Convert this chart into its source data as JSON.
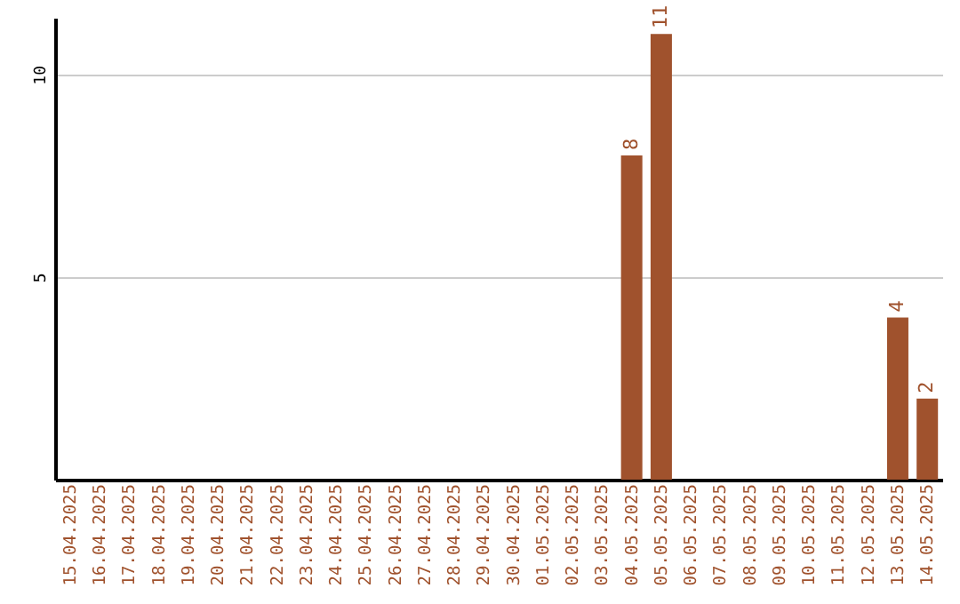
{
  "chart_data": {
    "type": "bar",
    "categories": [
      "15.04.2025",
      "16.04.2025",
      "17.04.2025",
      "18.04.2025",
      "19.04.2025",
      "20.04.2025",
      "21.04.2025",
      "22.04.2025",
      "23.04.2025",
      "24.04.2025",
      "25.04.2025",
      "26.04.2025",
      "27.04.2025",
      "28.04.2025",
      "29.04.2025",
      "30.04.2025",
      "01.05.2025",
      "02.05.2025",
      "03.05.2025",
      "04.05.2025",
      "05.05.2025",
      "06.05.2025",
      "07.05.2025",
      "08.05.2025",
      "09.05.2025",
      "10.05.2025",
      "11.05.2025",
      "12.05.2025",
      "13.05.2025",
      "14.05.2025"
    ],
    "values": [
      0,
      0,
      0,
      0,
      0,
      0,
      0,
      0,
      0,
      0,
      0,
      0,
      0,
      0,
      0,
      0,
      0,
      0,
      0,
      8,
      11,
      0,
      0,
      0,
      0,
      0,
      0,
      0,
      4,
      2
    ],
    "value_labels": [
      null,
      null,
      null,
      null,
      null,
      null,
      null,
      null,
      null,
      null,
      null,
      null,
      null,
      null,
      null,
      null,
      null,
      null,
      null,
      "8",
      "11",
      null,
      null,
      null,
      null,
      null,
      null,
      null,
      "4",
      "2"
    ],
    "color": "#a0522d",
    "ylim": [
      0,
      11.4
    ],
    "yticks": [
      5,
      10
    ],
    "grid": "y"
  }
}
